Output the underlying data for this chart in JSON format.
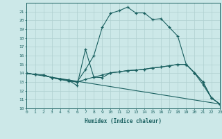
{
  "xlabel": "Humidex (Indice chaleur)",
  "bg_color": "#cce8e8",
  "grid_color": "#b0d0d0",
  "line_color": "#1a6060",
  "xlim": [
    0,
    23
  ],
  "ylim": [
    10,
    22
  ],
  "yticks": [
    10,
    11,
    12,
    13,
    14,
    15,
    16,
    17,
    18,
    19,
    20,
    21
  ],
  "xticks": [
    0,
    1,
    2,
    3,
    4,
    5,
    6,
    7,
    8,
    9,
    10,
    11,
    12,
    13,
    14,
    15,
    16,
    17,
    18,
    19,
    20,
    21,
    22,
    23
  ],
  "line1_x": [
    0,
    1,
    2,
    3,
    4,
    5,
    6,
    7,
    8,
    9,
    10,
    11,
    12,
    13,
    14,
    15,
    16,
    17,
    18,
    19,
    20,
    21,
    22,
    23
  ],
  "line1_y": [
    14.0,
    13.85,
    13.8,
    13.5,
    13.3,
    13.1,
    13.0,
    14.4,
    16.0,
    19.2,
    20.8,
    21.1,
    21.5,
    20.85,
    20.85,
    20.1,
    20.2,
    19.2,
    18.2,
    15.0,
    14.0,
    12.7,
    11.2,
    10.5
  ],
  "line2_x": [
    0,
    1,
    2,
    3,
    4,
    5,
    6,
    7,
    8,
    9,
    10,
    11,
    12,
    13,
    14,
    15,
    16,
    17,
    18,
    19,
    20,
    21,
    22,
    23
  ],
  "line2_y": [
    14.0,
    13.85,
    13.8,
    13.5,
    13.3,
    13.2,
    13.0,
    13.3,
    13.55,
    13.8,
    14.05,
    14.15,
    14.3,
    14.35,
    14.45,
    14.6,
    14.7,
    14.85,
    15.0,
    15.0,
    14.05,
    13.0,
    11.2,
    10.5
  ],
  "line3_x": [
    0,
    23
  ],
  "line3_y": [
    14.0,
    10.5
  ],
  "line4_x": [
    0,
    1,
    2,
    3,
    4,
    5,
    6,
    7,
    8,
    9,
    10,
    11,
    12,
    13,
    14,
    15,
    16,
    17,
    18,
    19,
    20,
    21,
    22,
    23
  ],
  "line4_y": [
    14.0,
    13.85,
    13.8,
    13.5,
    13.3,
    13.2,
    12.6,
    16.7,
    13.55,
    13.5,
    14.05,
    14.15,
    14.3,
    14.35,
    14.45,
    14.6,
    14.7,
    14.85,
    15.0,
    15.0,
    14.05,
    13.0,
    11.2,
    10.5
  ]
}
